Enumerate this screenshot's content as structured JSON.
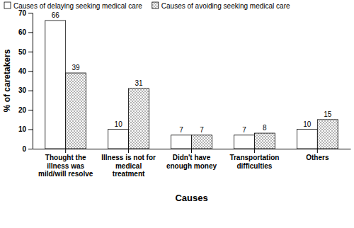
{
  "chart_data": {
    "type": "bar",
    "x_label": "Causes",
    "y_label": "% of caretakers",
    "categories": [
      "Thought the illness was mild/will resolve",
      "Illness is not for medical treatment",
      "Didn't have enough money",
      "Transportation difficulties",
      "Others"
    ],
    "series": [
      {
        "name": "Causes of delaying seeking medical care",
        "color": "#ffffff",
        "values": [
          66,
          10,
          7,
          7,
          10
        ]
      },
      {
        "name": "Causes of avoiding seeking medical care",
        "color": "#555555",
        "values": [
          39,
          31,
          7,
          8,
          15
        ]
      }
    ],
    "ylim": [
      0,
      70
    ],
    "yticks": [
      0,
      10,
      20,
      30,
      40,
      50,
      60,
      70
    ],
    "grid": false,
    "legend": "top",
    "data_labels": true
  }
}
